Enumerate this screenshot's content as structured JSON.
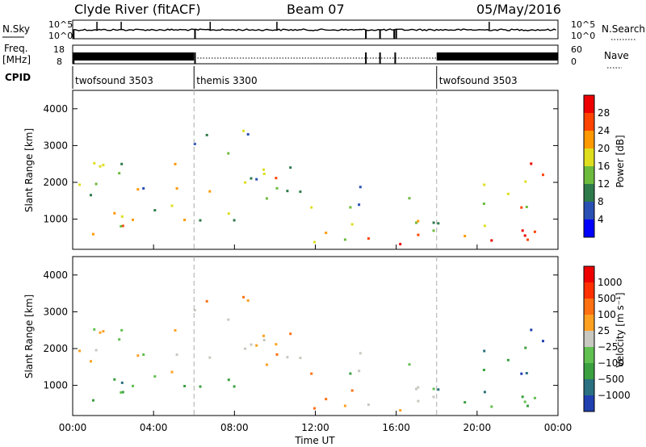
{
  "header": {
    "station": "Clyde River (fitACF)",
    "beam": "Beam 07",
    "date": "05/May/2016"
  },
  "strip_panels": {
    "left_labels": {
      "nsky": "N.Sky",
      "freq": "Freq.",
      "freq_unit": "[MHz]",
      "cpid": "CPID"
    },
    "right_labels": {
      "nsearch": "N.Search",
      "nave": "Nave"
    },
    "nsky_ticks": [
      "10^5",
      "10^0"
    ],
    "nsearch_ticks": [
      "10^5",
      "10^0"
    ],
    "freq_ticks": [
      "18",
      "8"
    ],
    "nave_ticks": [
      "60",
      "0"
    ]
  },
  "cpid_segments": [
    {
      "label": "twofsound 3503",
      "start_h": 0,
      "end_h": 6
    },
    {
      "label": "themis 3300",
      "start_h": 6,
      "end_h": 18
    },
    {
      "label": "twofsound 3503",
      "start_h": 18,
      "end_h": 24
    }
  ],
  "chart_data": [
    {
      "type": "heatmap",
      "name": "power",
      "ylabel": "Slant Range [km]",
      "xlabel": "Time UT",
      "x_range_h": [
        0,
        24
      ],
      "y_range_km": [
        180,
        4500
      ],
      "y_ticks": [
        "1000",
        "2000",
        "3000",
        "4000"
      ],
      "colorbar_label": "Power [dB]",
      "colorbar_ticks": [
        "28",
        "24",
        "20",
        "16",
        "12",
        "8",
        "4"
      ],
      "colors": [
        "#0000ff",
        "#2a50b4",
        "#2e7a4a",
        "#6cbb3c",
        "#dede1e",
        "#ff9900",
        "#ff4400",
        "#ee0000"
      ]
    },
    {
      "type": "heatmap",
      "name": "velocity",
      "ylabel": "Slant Range [km]",
      "xlabel": "Time UT",
      "x_range_h": [
        0,
        24
      ],
      "y_range_km": [
        180,
        4500
      ],
      "y_ticks": [
        "1000",
        "2000",
        "3000",
        "4000"
      ],
      "colorbar_label": "Velocity [m s⁻¹]",
      "colorbar_ticks": [
        "1000",
        "500",
        "100",
        "25",
        "−25",
        "−100",
        "−500",
        "−1000"
      ],
      "colors": [
        "#2040b0",
        "#2a7080",
        "#3aa040",
        "#60c050",
        "#c8c8c0",
        "#ffa020",
        "#ff7010",
        "#ff3000",
        "#ee0000"
      ]
    }
  ],
  "x_ticks": [
    "00:00",
    "04:00",
    "08:00",
    "12:00",
    "16:00",
    "20:00",
    "00:00"
  ],
  "x_axis_title": "Time UT"
}
